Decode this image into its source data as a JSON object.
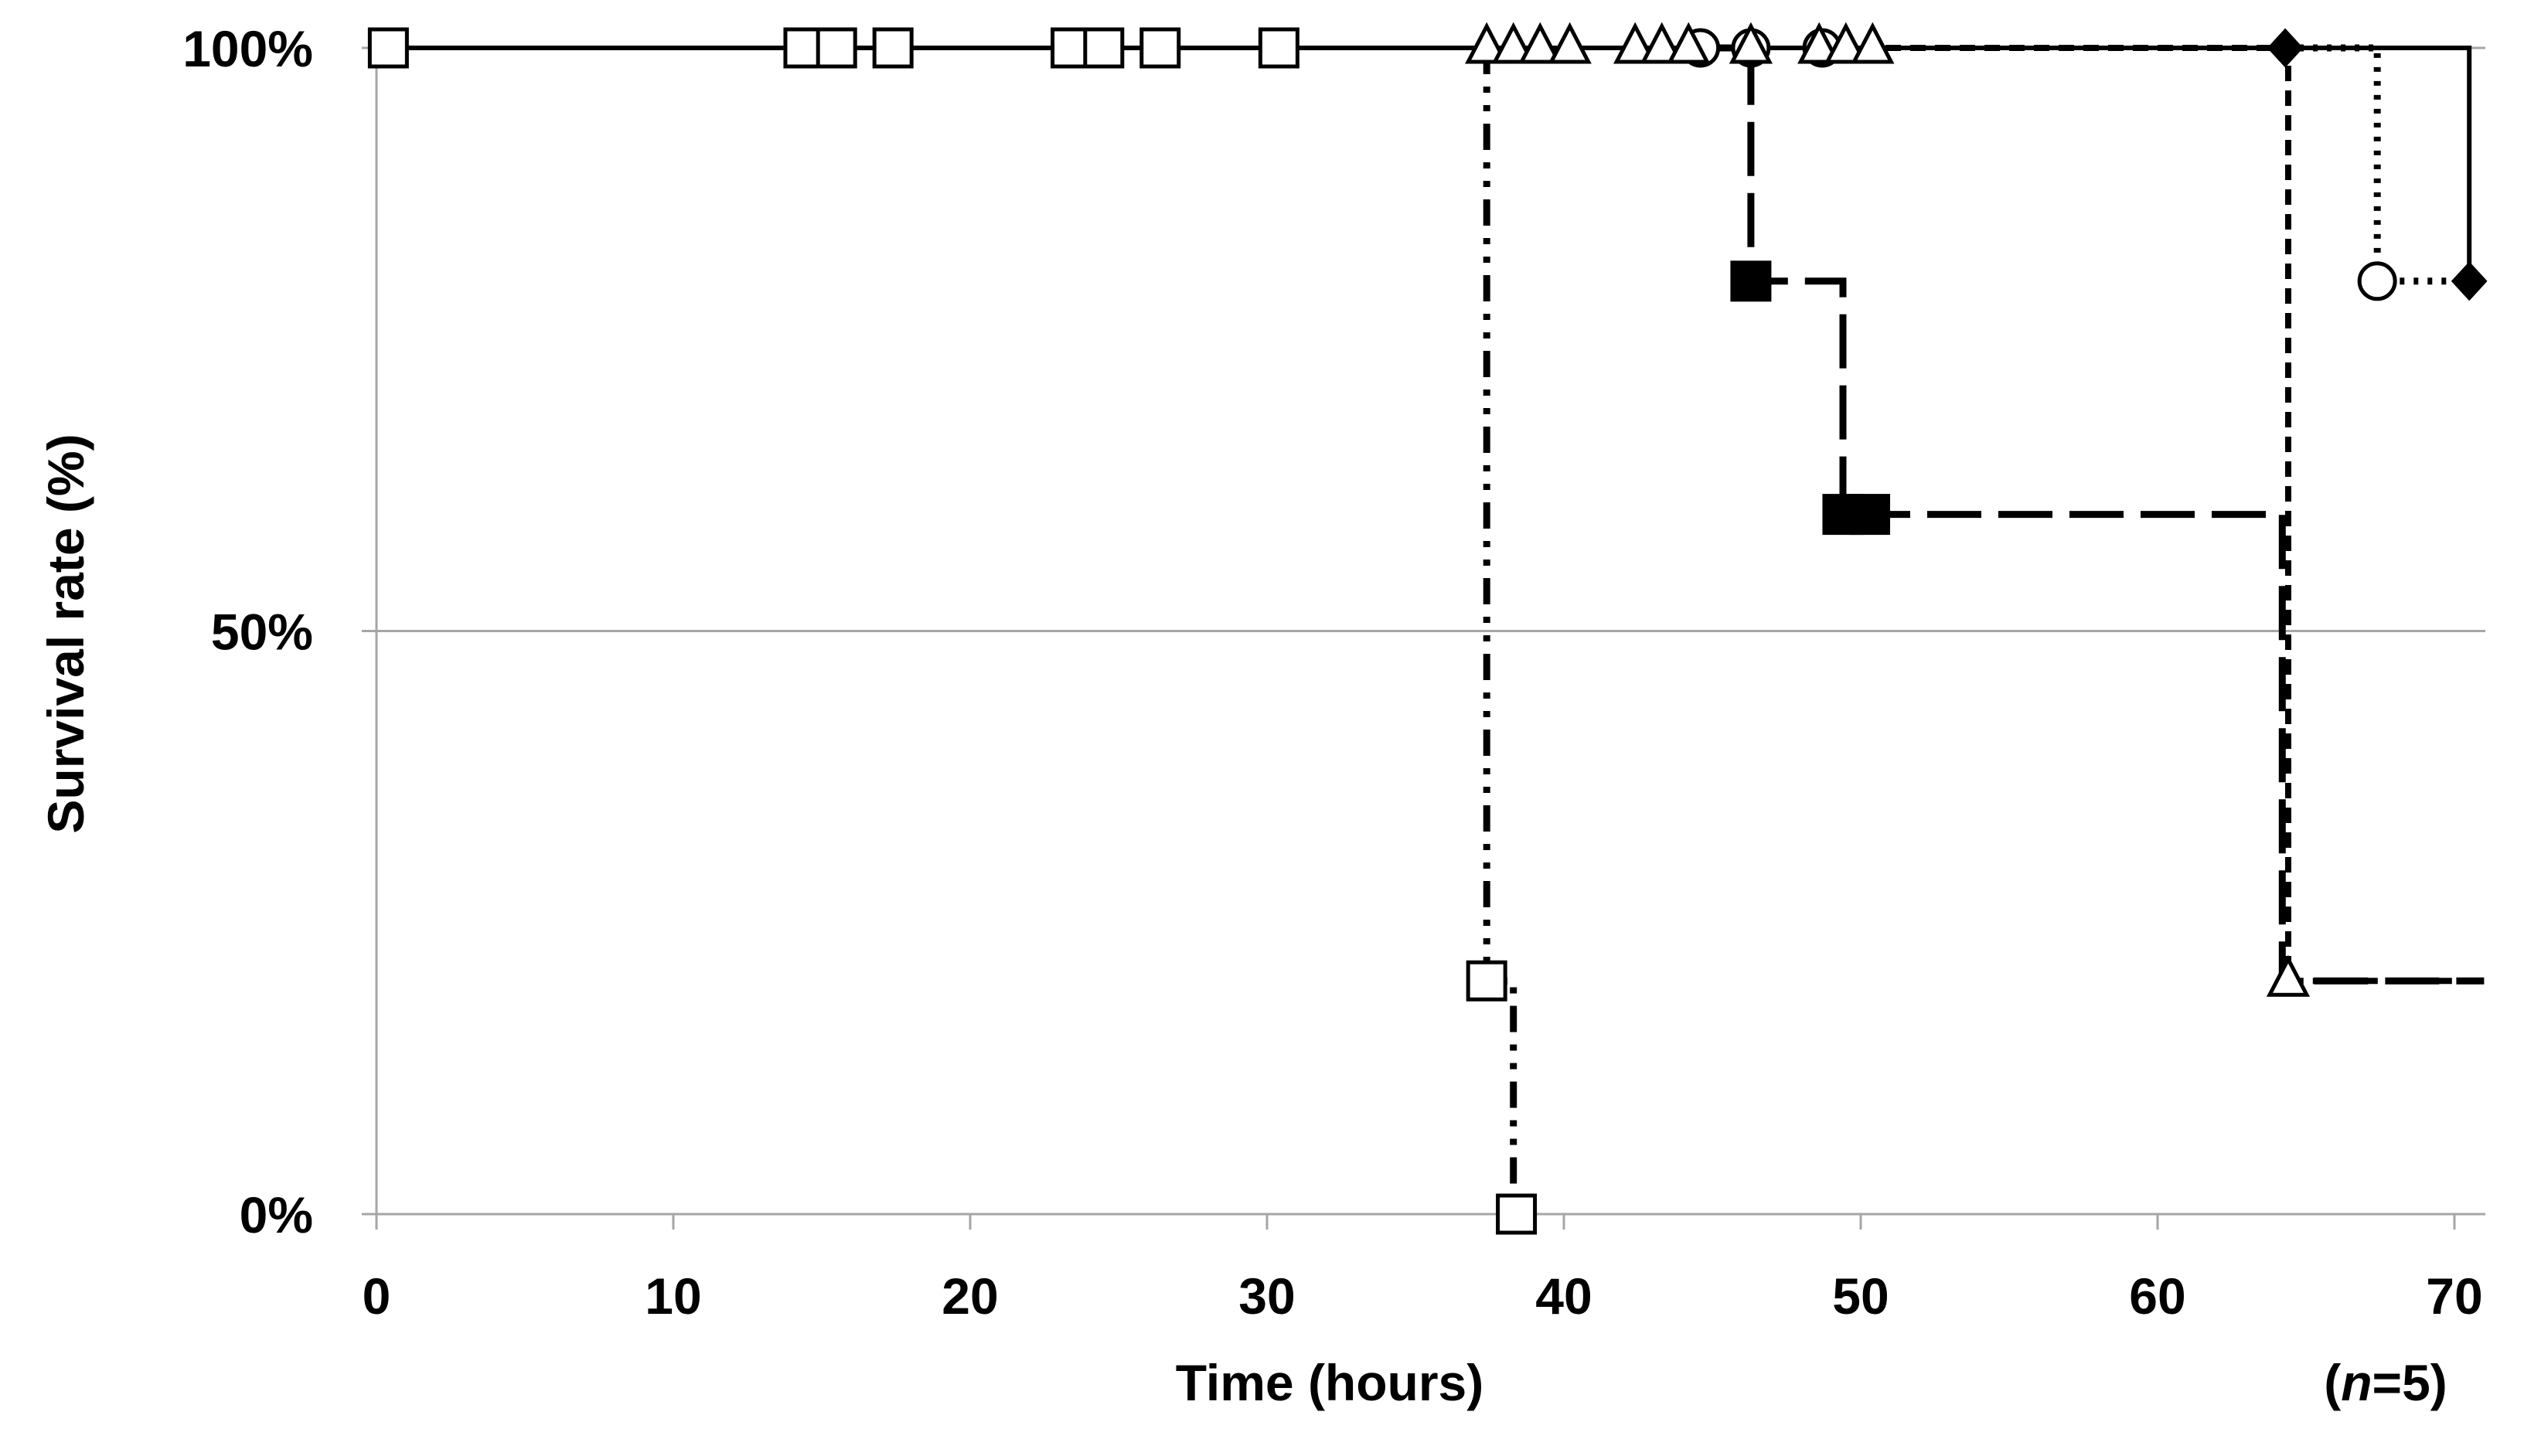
{
  "chart_data": {
    "type": "line",
    "title": "",
    "xlabel": "Time (hours)",
    "ylabel": "Survival rate (%)",
    "note": {
      "prefix": "(",
      "italic": "n",
      "suffix": "=5)"
    },
    "xlim": [
      0,
      71
    ],
    "ylim": [
      0,
      100
    ],
    "x_ticks": [
      0,
      10,
      20,
      30,
      40,
      50,
      60,
      70
    ],
    "y_ticks": [
      0,
      50,
      100
    ],
    "y_tick_labels": [
      "0%",
      "50%",
      "100%"
    ],
    "grid": "horizontal",
    "legend": "none",
    "series": [
      {
        "line_style": "solid",
        "x": [
          0,
          70.5,
          70.5,
          71
        ],
        "y": [
          100,
          100,
          80,
          80
        ],
        "markers": [
          {
            "shape": "diamond-filled",
            "x": 64.3,
            "y": 100
          },
          {
            "shape": "diamond-filled",
            "x": 70.5,
            "y": 80
          }
        ]
      },
      {
        "line_style": "dotted",
        "x": [
          64.3,
          70.5,
          67.4,
          71
        ],
        "y": [
          100,
          100,
          80,
          80
        ],
        "path": [
          [
            64.3,
            100
          ],
          [
            67.4,
            100
          ],
          [
            67.4,
            80
          ],
          [
            71,
            80
          ]
        ],
        "markers": [
          {
            "shape": "circle-open",
            "x": 44.6,
            "y": 100
          },
          {
            "shape": "circle-open",
            "x": 46.3,
            "y": 100
          },
          {
            "shape": "circle-open",
            "x": 48.7,
            "y": 100
          },
          {
            "shape": "circle-open",
            "x": 67.4,
            "y": 80
          }
        ]
      },
      {
        "line_style": "long-dash",
        "path": [
          [
            44,
            100
          ],
          [
            46.3,
            100
          ],
          [
            46.3,
            80
          ],
          [
            49.4,
            80
          ],
          [
            49.4,
            60
          ],
          [
            64.2,
            60
          ],
          [
            64.2,
            20
          ],
          [
            71,
            20
          ]
        ],
        "markers": [
          {
            "shape": "square-filled",
            "x": 46.3,
            "y": 80
          },
          {
            "shape": "square-filled",
            "x": 49.4,
            "y": 60
          },
          {
            "shape": "square-filled",
            "x": 50.3,
            "y": 60
          }
        ]
      },
      {
        "line_style": "short-dash",
        "path": [
          [
            50,
            100
          ],
          [
            64.4,
            100
          ],
          [
            64.4,
            20
          ],
          [
            71,
            20
          ]
        ],
        "markers": [
          {
            "shape": "triangle-open",
            "x": 37.4,
            "y": 100
          },
          {
            "shape": "triangle-open",
            "x": 38.3,
            "y": 100
          },
          {
            "shape": "triangle-open",
            "x": 39.2,
            "y": 100
          },
          {
            "shape": "triangle-open",
            "x": 40.2,
            "y": 100
          },
          {
            "shape": "triangle-open",
            "x": 42.4,
            "y": 100
          },
          {
            "shape": "triangle-open",
            "x": 43.3,
            "y": 100
          },
          {
            "shape": "triangle-open",
            "x": 44.2,
            "y": 100
          },
          {
            "shape": "triangle-open",
            "x": 46.3,
            "y": 100
          },
          {
            "shape": "triangle-open",
            "x": 48.6,
            "y": 100
          },
          {
            "shape": "triangle-open",
            "x": 49.5,
            "y": 100
          },
          {
            "shape": "triangle-open",
            "x": 50.4,
            "y": 100
          },
          {
            "shape": "triangle-open",
            "x": 64.4,
            "y": 20
          }
        ]
      },
      {
        "line_style": "dash-dot-dot",
        "path": [
          [
            37.4,
            100
          ],
          [
            37.4,
            20
          ],
          [
            38.3,
            20
          ],
          [
            38.3,
            0
          ]
        ],
        "markers": [
          {
            "shape": "square-open",
            "x": 0.4,
            "y": 100
          },
          {
            "shape": "square-open",
            "x": 14.4,
            "y": 100
          },
          {
            "shape": "square-open",
            "x": 15.5,
            "y": 100
          },
          {
            "shape": "square-open",
            "x": 17.4,
            "y": 100
          },
          {
            "shape": "square-open",
            "x": 23.4,
            "y": 100
          },
          {
            "shape": "square-open",
            "x": 24.5,
            "y": 100
          },
          {
            "shape": "square-open",
            "x": 26.4,
            "y": 100
          },
          {
            "shape": "square-open",
            "x": 30.4,
            "y": 100
          },
          {
            "shape": "square-open",
            "x": 37.4,
            "y": 20
          },
          {
            "shape": "square-open",
            "x": 38.4,
            "y": 0
          }
        ]
      }
    ]
  }
}
